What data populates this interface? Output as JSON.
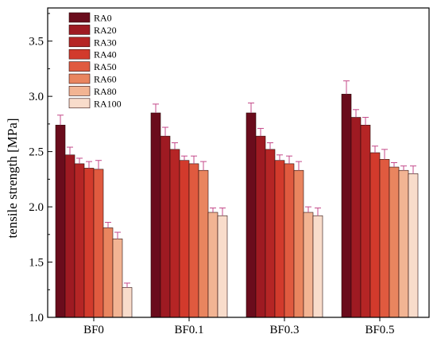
{
  "chart_data": {
    "type": "bar",
    "ylabel": "tensile strength [MPa]",
    "xlabel": "",
    "ylim": [
      1.0,
      3.8
    ],
    "yticks": [
      1.0,
      1.5,
      2.0,
      2.5,
      3.0,
      3.5
    ],
    "ytick_labels": [
      "1.0",
      "1.5",
      "2.0",
      "2.5",
      "3.0",
      "3.5"
    ],
    "categories": [
      "BF0",
      "BF0.1",
      "BF0.3",
      "BF0.5"
    ],
    "legend_position": "top-left",
    "error_bar_color": "#c44a8a",
    "series": [
      {
        "name": "RA0",
        "color": "#6a0c1c",
        "values": [
          2.74,
          2.85,
          2.85,
          3.02
        ],
        "errors": [
          0.09,
          0.08,
          0.09,
          0.12
        ]
      },
      {
        "name": "RA20",
        "color": "#9e1a22",
        "values": [
          2.47,
          2.64,
          2.64,
          2.81
        ],
        "errors": [
          0.07,
          0.08,
          0.07,
          0.07
        ]
      },
      {
        "name": "RA30",
        "color": "#b52525",
        "values": [
          2.39,
          2.52,
          2.52,
          2.74
        ],
        "errors": [
          0.05,
          0.06,
          0.06,
          0.07
        ]
      },
      {
        "name": "RA40",
        "color": "#d23a2c",
        "values": [
          2.35,
          2.42,
          2.42,
          2.49
        ],
        "errors": [
          0.06,
          0.04,
          0.05,
          0.06
        ]
      },
      {
        "name": "RA50",
        "color": "#e05a3f",
        "values": [
          2.34,
          2.39,
          2.39,
          2.43
        ],
        "errors": [
          0.08,
          0.07,
          0.07,
          0.09
        ]
      },
      {
        "name": "RA60",
        "color": "#e9855f",
        "values": [
          1.81,
          2.33,
          2.33,
          2.36
        ],
        "errors": [
          0.05,
          0.08,
          0.08,
          0.04
        ]
      },
      {
        "name": "RA80",
        "color": "#f2b493",
        "values": [
          1.71,
          1.95,
          1.95,
          2.33
        ],
        "errors": [
          0.06,
          0.04,
          0.05,
          0.04
        ]
      },
      {
        "name": "RA100",
        "color": "#f8dccb",
        "values": [
          1.27,
          1.92,
          1.92,
          2.3
        ],
        "errors": [
          0.04,
          0.07,
          0.07,
          0.07
        ]
      }
    ]
  }
}
